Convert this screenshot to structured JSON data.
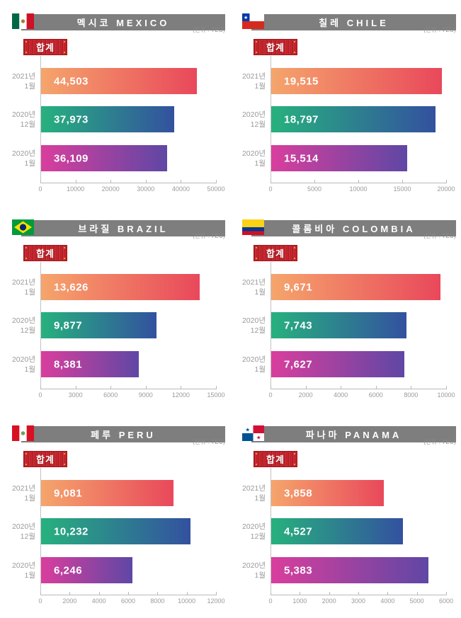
{
  "unit_label": "(단위 : TEU)",
  "total_badge_label": "합계",
  "categories": [
    {
      "line1": "2021년",
      "line2": "1월"
    },
    {
      "line1": "2020년",
      "line2": "12월"
    },
    {
      "line1": "2020년",
      "line2": "1월"
    }
  ],
  "colors": {
    "header_bar": "#7E7E7E",
    "bar_gradient_2021_jan": [
      "#F5A56C",
      "#E9485B"
    ],
    "bar_gradient_2020_dec": [
      "#27B17E",
      "#33519F"
    ],
    "bar_gradient_2020_jan": [
      "#D93E9D",
      "#5F47A5"
    ],
    "bar_shadow": "#DBDBDB",
    "badge_red": "#C4232B",
    "axis_gray": "#B9B9B9",
    "label_gray": "#9A9A9A"
  },
  "chart_data": [
    {
      "type": "bar",
      "orientation": "horizontal",
      "title": "멕시코 MEXICO",
      "flag": "mexico-flag",
      "unit": "TEU",
      "categories": [
        "2021년 1월",
        "2020년 12월",
        "2020년 1월"
      ],
      "values": [
        44503,
        37973,
        36109
      ],
      "value_labels": [
        "44,503",
        "37,973",
        "36,109"
      ],
      "xlim": [
        0,
        50000
      ],
      "ticks": [
        0,
        10000,
        20000,
        30000,
        40000,
        50000
      ]
    },
    {
      "type": "bar",
      "orientation": "horizontal",
      "title": "칠레 CHILE",
      "flag": "chile-flag",
      "unit": "TEU",
      "categories": [
        "2021년 1월",
        "2020년 12월",
        "2020년 1월"
      ],
      "values": [
        19515,
        18797,
        15514
      ],
      "value_labels": [
        "19,515",
        "18,797",
        "15,514"
      ],
      "xlim": [
        0,
        20000
      ],
      "ticks": [
        0,
        5000,
        10000,
        15000,
        20000
      ]
    },
    {
      "type": "bar",
      "orientation": "horizontal",
      "title": "브라질 BRAZIL",
      "flag": "brazil-flag",
      "unit": "TEU",
      "categories": [
        "2021년 1월",
        "2020년 12월",
        "2020년 1월"
      ],
      "values": [
        13626,
        9877,
        8381
      ],
      "value_labels": [
        "13,626",
        "9,877",
        "8,381"
      ],
      "xlim": [
        0,
        15000
      ],
      "ticks": [
        0,
        3000,
        6000,
        9000,
        12000,
        15000
      ]
    },
    {
      "type": "bar",
      "orientation": "horizontal",
      "title": "콜롬비아 COLOMBIA",
      "flag": "colombia-flag",
      "unit": "TEU",
      "categories": [
        "2021년 1월",
        "2020년 12월",
        "2020년 1월"
      ],
      "values": [
        9671,
        7743,
        7627
      ],
      "value_labels": [
        "9,671",
        "7,743",
        "7,627"
      ],
      "xlim": [
        0,
        10000
      ],
      "ticks": [
        0,
        2000,
        4000,
        6000,
        8000,
        10000
      ]
    },
    {
      "type": "bar",
      "orientation": "horizontal",
      "title": "페루 PERU",
      "flag": "peru-flag",
      "unit": "TEU",
      "categories": [
        "2021년 1월",
        "2020년 12월",
        "2020년 1월"
      ],
      "values": [
        9081,
        10232,
        6246
      ],
      "value_labels": [
        "9,081",
        "10,232",
        "6,246"
      ],
      "xlim": [
        0,
        12000
      ],
      "ticks": [
        0,
        2000,
        4000,
        6000,
        8000,
        10000,
        12000
      ]
    },
    {
      "type": "bar",
      "orientation": "horizontal",
      "title": "파나마 PANAMA",
      "flag": "panama-flag",
      "unit": "TEU",
      "categories": [
        "2021년 1월",
        "2020년 12월",
        "2020년 1월"
      ],
      "values": [
        3858,
        4527,
        5383
      ],
      "value_labels": [
        "3,858",
        "4,527",
        "5,383"
      ],
      "xlim": [
        0,
        6000
      ],
      "ticks": [
        0,
        1000,
        2000,
        3000,
        4000,
        5000,
        6000
      ]
    }
  ]
}
